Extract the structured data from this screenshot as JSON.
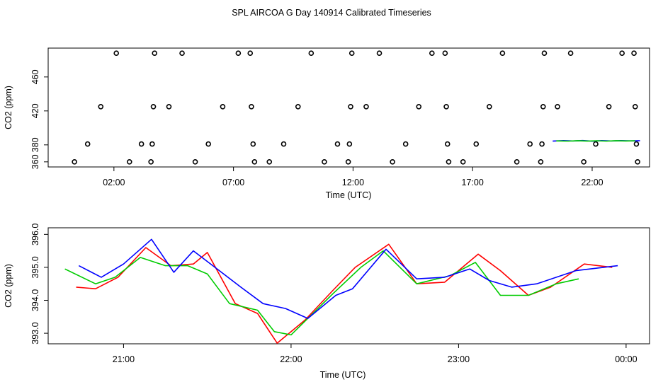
{
  "title": "SPL AIRCOA G  Day 140914  Calibrated Timeseries",
  "chart_data": [
    {
      "type": "scatter",
      "xlabel": "Time (UTC)",
      "ylabel": "CO2 (ppm)",
      "xlim": [
        -0.75,
        24.4
      ],
      "ylim": [
        354,
        494
      ],
      "x_ticks": [
        {
          "value": 2,
          "label": "02:00"
        },
        {
          "value": 7,
          "label": "07:00"
        },
        {
          "value": 12,
          "label": "12:00"
        },
        {
          "value": 17,
          "label": "17:00"
        },
        {
          "value": 22,
          "label": "22:00"
        }
      ],
      "y_ticks": [
        {
          "value": 360,
          "label": "360"
        },
        {
          "value": 380,
          "label": "380"
        },
        {
          "value": 420,
          "label": "420"
        },
        {
          "value": 460,
          "label": "460"
        }
      ],
      "points": [
        [
          0.35,
          360
        ],
        [
          0.9,
          381
        ],
        [
          1.45,
          425
        ],
        [
          2.1,
          488
        ],
        [
          2.65,
          360
        ],
        [
          3.15,
          381
        ],
        [
          3.55,
          360
        ],
        [
          3.6,
          381
        ],
        [
          3.65,
          425
        ],
        [
          3.7,
          488
        ],
        [
          4.3,
          425
        ],
        [
          4.85,
          488
        ],
        [
          5.4,
          360
        ],
        [
          5.95,
          381
        ],
        [
          6.55,
          425
        ],
        [
          7.2,
          488
        ],
        [
          7.7,
          488
        ],
        [
          7.75,
          425
        ],
        [
          7.82,
          381
        ],
        [
          7.88,
          360
        ],
        [
          8.5,
          360
        ],
        [
          9.1,
          381
        ],
        [
          9.7,
          425
        ],
        [
          10.25,
          488
        ],
        [
          10.8,
          360
        ],
        [
          11.35,
          381
        ],
        [
          11.8,
          360
        ],
        [
          11.85,
          381
        ],
        [
          11.9,
          425
        ],
        [
          11.95,
          488
        ],
        [
          12.55,
          425
        ],
        [
          13.1,
          488
        ],
        [
          13.65,
          360
        ],
        [
          14.2,
          381
        ],
        [
          14.75,
          425
        ],
        [
          15.3,
          488
        ],
        [
          15.85,
          488
        ],
        [
          15.9,
          425
        ],
        [
          15.95,
          381
        ],
        [
          16.0,
          360
        ],
        [
          16.6,
          360
        ],
        [
          17.15,
          381
        ],
        [
          17.7,
          425
        ],
        [
          18.25,
          488
        ],
        [
          18.85,
          360
        ],
        [
          19.4,
          381
        ],
        [
          19.85,
          360
        ],
        [
          19.9,
          381
        ],
        [
          19.95,
          425
        ],
        [
          20.0,
          488
        ],
        [
          20.55,
          425
        ],
        [
          21.1,
          488
        ],
        [
          21.65,
          360
        ],
        [
          22.15,
          381
        ],
        [
          22.7,
          425
        ],
        [
          23.25,
          488
        ],
        [
          23.75,
          488
        ],
        [
          23.8,
          425
        ],
        [
          23.85,
          381
        ],
        [
          23.9,
          360
        ]
      ],
      "series": [
        {
          "color": "#0000ff",
          "x": [
            20.35,
            20.8,
            21.2,
            21.6,
            22.0,
            22.4,
            22.8,
            23.2,
            23.6,
            24.0
          ],
          "y": [
            384.5,
            385.0,
            384.6,
            385.1,
            384.3,
            385.0,
            384.6,
            385.0,
            384.7,
            384.9
          ]
        },
        {
          "color": "#00cc00",
          "x": [
            20.5,
            21.0,
            21.4,
            21.8,
            22.2,
            22.6,
            23.0,
            23.4,
            23.8
          ],
          "y": [
            384.7,
            384.4,
            384.9,
            384.5,
            384.8,
            384.4,
            384.9,
            384.6,
            384.8
          ]
        }
      ]
    },
    {
      "type": "line",
      "xlabel": "Time (UTC)",
      "ylabel": "CO2 (ppm)",
      "xlim": [
        20.55,
        24.14
      ],
      "ylim": [
        392.68,
        396.2
      ],
      "x_ticks": [
        {
          "value": 21,
          "label": "21:00"
        },
        {
          "value": 22,
          "label": "22:00"
        },
        {
          "value": 23,
          "label": "23:00"
        },
        {
          "value": 24,
          "label": "00:00"
        }
      ],
      "y_ticks": [
        {
          "value": 393.0,
          "label": "393.0"
        },
        {
          "value": 394.0,
          "label": "394.0"
        },
        {
          "value": 395.0,
          "label": "395.0"
        },
        {
          "value": 396.0,
          "label": "396.0"
        }
      ],
      "series": [
        {
          "color": "#ff0000",
          "x": [
            20.717,
            20.833,
            20.967,
            21.133,
            21.283,
            21.417,
            21.5,
            21.667,
            21.8,
            21.917,
            22.083,
            22.25,
            22.383,
            22.583,
            22.75,
            22.917,
            23.117,
            23.25,
            23.417,
            23.55,
            23.75,
            23.917
          ],
          "y": [
            394.4,
            394.35,
            394.7,
            395.6,
            395.05,
            395.1,
            395.45,
            393.9,
            393.6,
            392.7,
            393.4,
            394.3,
            395.0,
            395.7,
            394.5,
            394.55,
            395.4,
            394.9,
            394.15,
            394.4,
            395.1,
            395.0
          ]
        },
        {
          "color": "#00cc00",
          "x": [
            20.65,
            20.833,
            20.95,
            21.1,
            21.25,
            21.383,
            21.5,
            21.633,
            21.8,
            21.9,
            22.0,
            22.25,
            22.417,
            22.55,
            22.75,
            22.95,
            23.1,
            23.25,
            23.417,
            23.583,
            23.717
          ],
          "y": [
            394.95,
            394.5,
            394.7,
            395.3,
            395.05,
            395.05,
            394.8,
            393.9,
            393.7,
            393.05,
            392.95,
            394.2,
            395.0,
            395.5,
            394.5,
            394.75,
            395.15,
            394.15,
            394.15,
            394.5,
            394.65
          ]
        },
        {
          "color": "#0000ff",
          "x": [
            20.733,
            20.867,
            21.0,
            21.167,
            21.3,
            21.417,
            21.533,
            21.7,
            21.833,
            21.967,
            22.1,
            22.267,
            22.367,
            22.567,
            22.75,
            22.917,
            23.067,
            23.183,
            23.317,
            23.467,
            23.7,
            23.95
          ],
          "y": [
            395.05,
            394.7,
            395.1,
            395.85,
            394.85,
            395.5,
            395.05,
            394.4,
            393.9,
            393.75,
            393.45,
            394.15,
            394.35,
            395.55,
            394.65,
            394.7,
            394.95,
            394.6,
            394.4,
            394.5,
            394.9,
            395.05
          ]
        }
      ]
    }
  ]
}
